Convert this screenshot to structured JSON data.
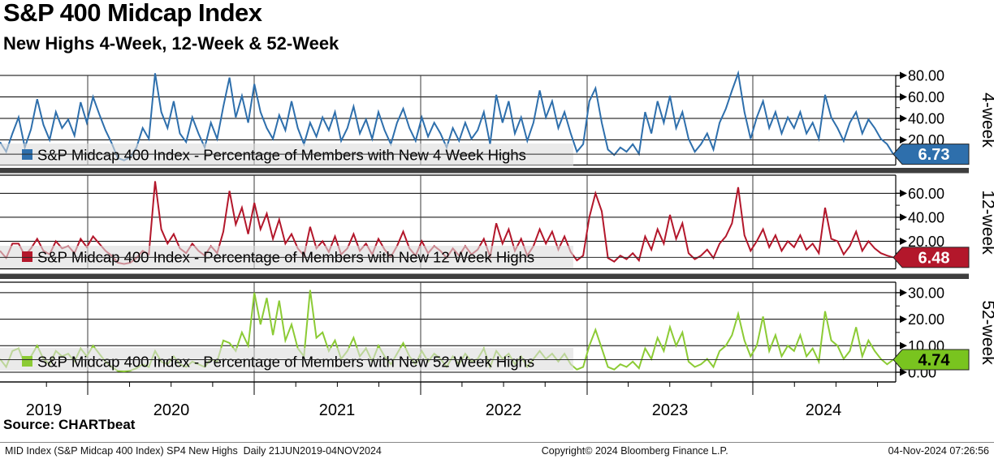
{
  "header": {
    "title": "S&P 400 Midcap Index",
    "subtitle": "New Highs 4-Week, 12-Week & 52-Week"
  },
  "source": {
    "label": "Source: CHARTbeat"
  },
  "footer": {
    "left": "MID Index (S&P Midcap 400 Index) SP4 New Highs  Daily 21JUN2019-04NOV2024",
    "center": "Copyright© 2024 Bloomberg Finance L.P.",
    "right": "04-Nov-2024 07:26:56"
  },
  "x_axis": {
    "year_labels": [
      "2019",
      "2020",
      "2021",
      "2022",
      "2023",
      "2024"
    ],
    "range_start": "21JUN2019",
    "range_end": "04NOV2024",
    "frequency": "Daily"
  },
  "chart_data": [
    {
      "type": "line",
      "name": "S&P Midcap 400 Index - Percentage of Members with New 4 Week Highs",
      "panel_label": "4-week",
      "color": "#2e6fac",
      "tag_color": "#2e6fac",
      "ylim": [
        0,
        83
      ],
      "yticks": [
        20,
        40,
        60,
        80
      ],
      "ytick_labels": [
        "20.00",
        "40.00",
        "60.00",
        "80.00"
      ],
      "yticks_minor": [
        10,
        30,
        50,
        70
      ],
      "last_value": 6.73,
      "last_value_text": "6.73",
      "values": [
        18,
        9,
        26,
        41,
        13,
        30,
        58,
        34,
        20,
        46,
        31,
        39,
        24,
        55,
        36,
        60,
        44,
        29,
        17,
        3,
        1,
        4,
        13,
        31,
        21,
        82,
        46,
        31,
        56,
        26,
        18,
        41,
        26,
        13,
        36,
        21,
        51,
        78,
        41,
        61,
        36,
        72,
        46,
        31,
        21,
        43,
        29,
        56,
        31,
        16,
        36,
        23,
        41,
        29,
        46,
        19,
        31,
        51,
        26,
        39,
        21,
        46,
        29,
        16,
        36,
        49,
        31,
        19,
        41,
        23,
        36,
        26,
        13,
        31,
        19,
        36,
        21,
        29,
        46,
        16,
        62,
        36,
        56,
        26,
        41,
        19,
        36,
        66,
        41,
        56,
        31,
        46,
        26,
        9,
        16,
        56,
        68,
        36,
        11,
        6,
        13,
        9,
        16,
        7,
        46,
        26,
        56,
        36,
        61,
        31,
        46,
        21,
        9,
        16,
        26,
        11,
        36,
        49,
        66,
        82,
        46,
        21,
        41,
        56,
        31,
        46,
        26,
        41,
        31,
        46,
        26,
        36,
        21,
        62,
        41,
        31,
        19,
        36,
        46,
        26,
        39,
        31,
        21,
        16,
        6.73
      ]
    },
    {
      "type": "line",
      "name": "S&P Midcap 400 Index - Percentage of Members with New 12 Week Highs",
      "panel_label": "12-week",
      "color": "#b3172b",
      "tag_color": "#b3172b",
      "ylim": [
        0,
        75
      ],
      "yticks": [
        20,
        40,
        60
      ],
      "ytick_labels": [
        "20.00",
        "40.00",
        "60.00"
      ],
      "yticks_minor": [
        10,
        30,
        50
      ],
      "last_value": 6.48,
      "last_value_text": "6.48",
      "values": [
        12,
        6,
        18,
        18,
        8,
        14,
        22,
        12,
        9,
        20,
        14,
        16,
        10,
        22,
        15,
        24,
        18,
        12,
        8,
        2,
        1,
        2,
        6,
        12,
        9,
        70,
        30,
        18,
        26,
        14,
        10,
        18,
        12,
        8,
        16,
        10,
        28,
        62,
        34,
        48,
        26,
        52,
        30,
        43,
        22,
        38,
        18,
        26,
        14,
        8,
        32,
        14,
        20,
        11,
        24,
        9,
        14,
        26,
        12,
        18,
        9,
        22,
        13,
        7,
        16,
        28,
        14,
        8,
        20,
        10,
        16,
        12,
        6,
        14,
        8,
        16,
        9,
        13,
        22,
        7,
        35,
        18,
        30,
        12,
        22,
        8,
        16,
        30,
        18,
        28,
        13,
        24,
        11,
        4,
        8,
        40,
        60,
        45,
        6,
        3,
        8,
        5,
        10,
        4,
        24,
        13,
        30,
        18,
        42,
        22,
        35,
        10,
        5,
        8,
        13,
        6,
        18,
        24,
        35,
        65,
        25,
        12,
        20,
        30,
        15,
        25,
        12,
        20,
        15,
        25,
        13,
        18,
        10,
        48,
        22,
        20,
        9,
        16,
        28,
        12,
        20,
        14,
        10,
        8,
        6.48
      ]
    },
    {
      "type": "line",
      "name": "S&P Midcap 400 Index - Percentage of Members with New 52 Week Highs",
      "panel_label": "52-week",
      "color": "#8ccb35",
      "tag_color": "#79c41f",
      "ylim": [
        0,
        34
      ],
      "yticks": [
        0,
        10,
        20,
        30
      ],
      "ytick_labels": [
        "0.00",
        "10.00",
        "20.00",
        "30.00"
      ],
      "yticks_minor": [
        5,
        15,
        25
      ],
      "last_value": 4.74,
      "last_value_text": "4.74",
      "values": [
        5,
        2,
        8,
        9,
        3,
        6,
        10,
        5,
        3,
        8,
        6,
        7,
        4,
        9,
        6,
        10,
        7,
        4,
        2,
        0.5,
        0.3,
        0.6,
        1.5,
        3,
        2,
        8,
        4,
        3,
        6,
        3,
        2,
        4,
        3,
        2,
        5,
        4,
        12,
        11,
        8,
        15,
        10,
        30,
        18,
        28,
        14,
        27,
        12,
        18,
        9,
        6,
        31,
        13,
        15,
        8,
        12,
        5,
        8,
        13,
        6,
        9,
        4,
        10,
        6,
        3,
        7,
        11,
        6,
        3,
        8,
        4,
        7,
        5,
        2,
        6,
        3,
        7,
        4,
        5,
        9,
        2,
        8,
        5,
        7,
        3,
        6,
        2,
        5,
        8,
        5,
        7,
        4,
        7,
        3,
        1,
        2,
        10,
        16,
        9,
        2,
        1,
        3,
        2,
        4,
        1.5,
        9,
        5,
        13,
        8,
        17,
        10,
        15,
        4,
        2,
        3,
        5,
        2,
        8,
        10,
        14,
        22,
        12,
        6,
        10,
        21,
        8,
        14,
        6,
        10,
        8,
        14,
        6,
        9,
        4,
        23,
        12,
        10,
        5,
        8,
        17,
        6,
        12,
        8,
        5,
        3,
        4.74
      ]
    }
  ]
}
